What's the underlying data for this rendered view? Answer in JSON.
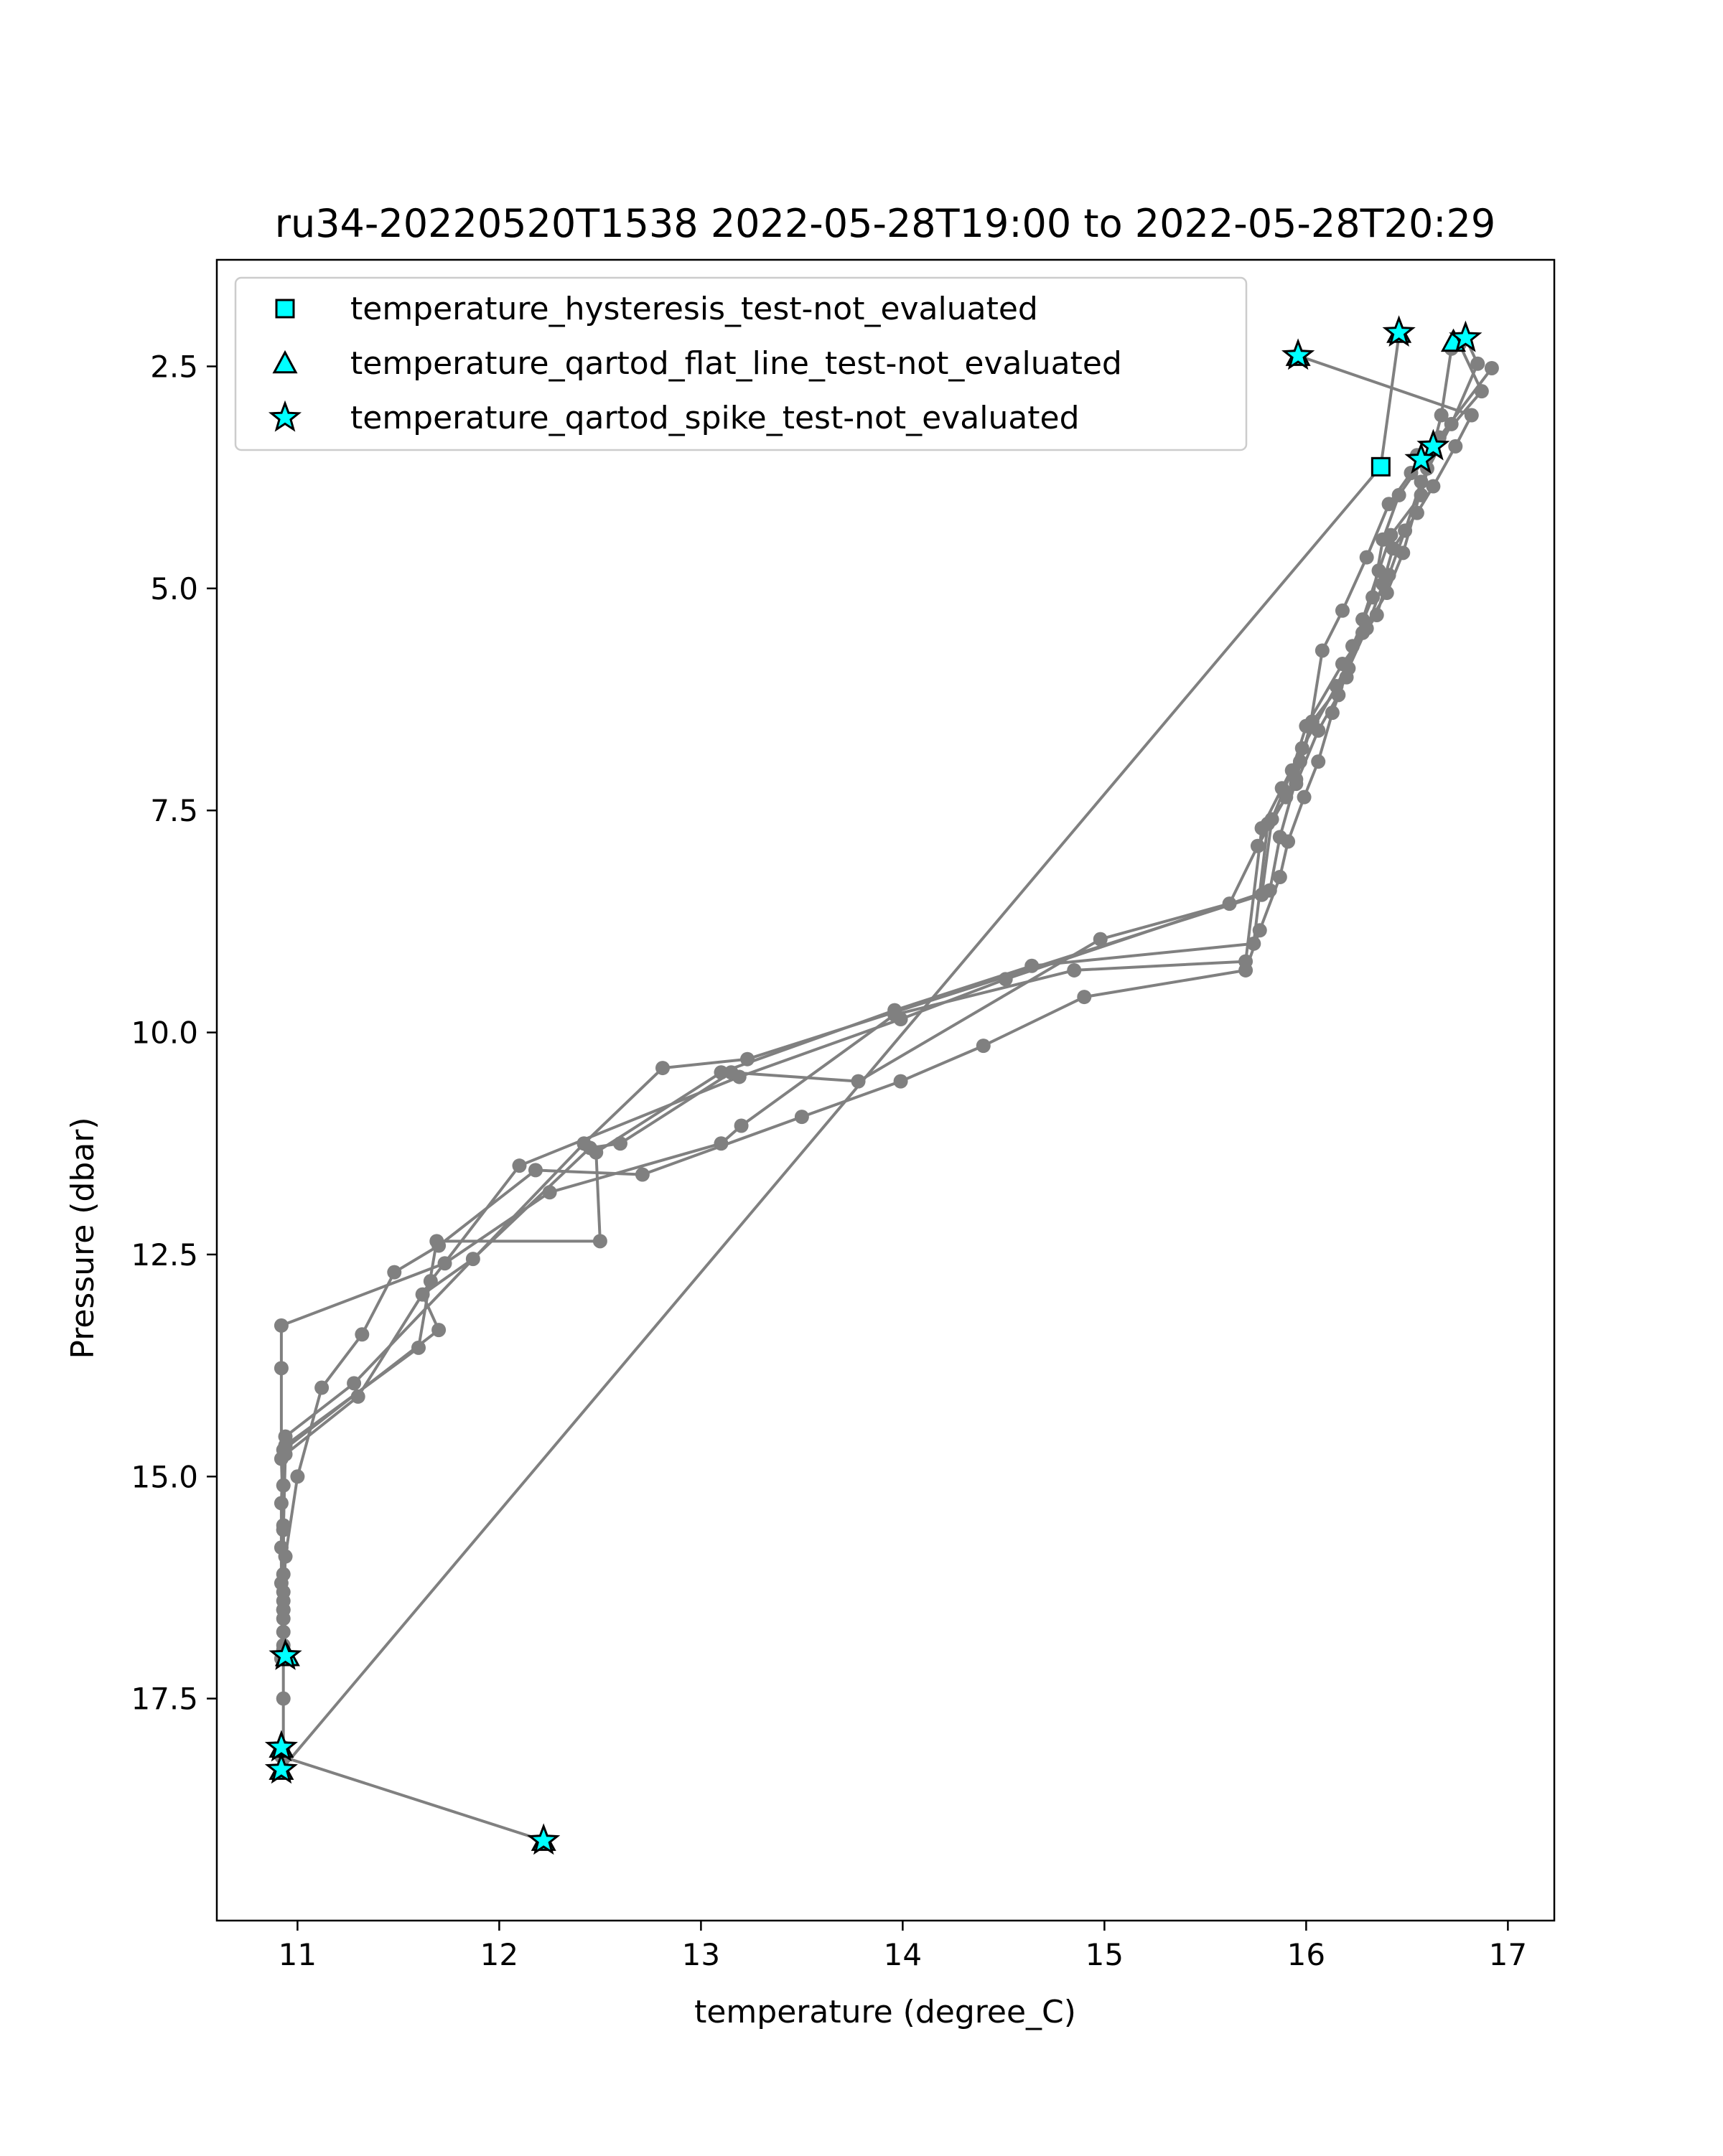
{
  "chart_data": {
    "type": "scatter",
    "title": "ru34-20220520T1538 2022-05-28T19:00 to 2022-05-28T20:29",
    "xlabel": "temperature (degree_C)",
    "ylabel": "Pressure (dbar)",
    "xlim": [
      10.6,
      17.23
    ],
    "ylim": [
      20.0,
      1.3
    ],
    "y_inverted": true,
    "x_ticks": [
      "11",
      "12",
      "13",
      "14",
      "15",
      "16",
      "17"
    ],
    "y_ticks": [
      "2.5",
      "5.0",
      "7.5",
      "10.0",
      "12.5",
      "15.0",
      "17.5"
    ],
    "grid": false,
    "legend_position": "top-left",
    "colors": {
      "profile": "#808080",
      "flag_fill": "#00ffff",
      "flag_edge": "#000000"
    },
    "series": [
      {
        "type": "line",
        "points": [
          [
            15.96,
            2.38
          ],
          [
            16.82,
            3.05
          ],
          [
            16.74,
            3.4
          ],
          [
            16.63,
            3.85
          ],
          [
            16.55,
            4.15
          ],
          [
            16.43,
            4.55
          ],
          [
            16.38,
            4.95
          ],
          [
            16.3,
            5.45
          ],
          [
            16.21,
            5.9
          ],
          [
            16.13,
            6.4
          ],
          [
            16.06,
            6.95
          ],
          [
            15.99,
            7.35
          ],
          [
            15.91,
            7.85
          ],
          [
            15.87,
            8.25
          ],
          [
            15.77,
            8.85
          ],
          [
            15.7,
            9.3
          ],
          [
            14.9,
            9.6
          ],
          [
            14.4,
            10.15
          ],
          [
            13.99,
            10.55
          ],
          [
            13.5,
            10.95
          ],
          [
            12.71,
            11.6
          ],
          [
            12.18,
            11.55
          ],
          [
            11.7,
            12.4
          ],
          [
            11.48,
            12.7
          ],
          [
            11.32,
            13.4
          ],
          [
            11.12,
            14.0
          ],
          [
            11.0,
            15.0
          ],
          [
            10.94,
            15.9
          ],
          [
            10.93,
            16.5
          ],
          [
            10.93,
            17.02
          ]
        ]
      },
      {
        "type": "line",
        "points": [
          [
            10.93,
            18.05
          ],
          [
            10.93,
            17.5
          ],
          [
            10.93,
            16.9
          ],
          [
            10.92,
            16.2
          ],
          [
            10.92,
            15.8
          ],
          [
            10.92,
            15.3
          ],
          [
            10.93,
            14.7
          ],
          [
            11.7,
            13.35
          ],
          [
            11.62,
            12.95
          ],
          [
            11.87,
            12.55
          ],
          [
            12.45,
            11.3
          ],
          [
            12.6,
            11.25
          ],
          [
            13.15,
            10.45
          ],
          [
            13.78,
            10.55
          ],
          [
            14.98,
            8.95
          ],
          [
            15.62,
            8.55
          ],
          [
            15.76,
            7.9
          ],
          [
            15.9,
            7.35
          ],
          [
            15.97,
            6.95
          ],
          [
            16.02,
            6.55
          ],
          [
            16.08,
            5.7
          ],
          [
            16.18,
            5.25
          ],
          [
            16.3,
            4.65
          ],
          [
            16.41,
            4.05
          ],
          [
            16.52,
            3.7
          ],
          [
            16.58,
            3.55
          ],
          [
            16.87,
            2.78
          ],
          [
            16.76,
            2.25
          ]
        ]
      },
      {
        "type": "line",
        "points": [
          [
            16.46,
            2.15
          ],
          [
            16.37,
            3.63
          ],
          [
            10.92,
            18.3
          ],
          [
            10.92,
            18.15
          ],
          [
            12.22,
            19.1
          ]
        ]
      },
      {
        "type": "line",
        "points": [
          [
            16.79,
            2.18
          ],
          [
            16.85,
            2.47
          ],
          [
            16.72,
            3.15
          ],
          [
            16.57,
            3.8
          ],
          [
            16.49,
            4.35
          ],
          [
            16.41,
            4.85
          ],
          [
            16.35,
            5.3
          ],
          [
            16.18,
            5.85
          ],
          [
            16.0,
            6.55
          ],
          [
            15.93,
            7.05
          ],
          [
            15.83,
            7.6
          ],
          [
            15.78,
            8.45
          ],
          [
            13.23,
            10.3
          ],
          [
            12.81,
            10.4
          ],
          [
            12.42,
            11.25
          ],
          [
            11.28,
            13.95
          ],
          [
            10.94,
            14.55
          ],
          [
            10.93,
            15.6
          ],
          [
            10.93,
            16.1
          ],
          [
            10.93,
            16.6
          ],
          [
            10.92,
            17.05
          ]
        ]
      },
      {
        "type": "line",
        "points": [
          [
            16.92,
            2.52
          ],
          [
            16.66,
            3.3
          ],
          [
            16.46,
            3.95
          ],
          [
            16.38,
            4.45
          ],
          [
            16.33,
            5.1
          ],
          [
            16.23,
            5.65
          ],
          [
            16.16,
            6.2
          ],
          [
            16.06,
            6.6
          ],
          [
            15.95,
            7.2
          ],
          [
            15.81,
            7.65
          ],
          [
            15.74,
            9.0
          ],
          [
            14.64,
            9.25
          ],
          [
            13.96,
            9.75
          ],
          [
            13.1,
            10.45
          ],
          [
            12.48,
            11.35
          ],
          [
            12.5,
            12.35
          ],
          [
            11.69,
            12.35
          ],
          [
            11.6,
            13.55
          ],
          [
            10.94,
            14.65
          ],
          [
            10.93,
            15.1
          ],
          [
            10.93,
            16.4
          ],
          [
            10.93,
            16.95
          ]
        ]
      },
      {
        "type": "line",
        "points": [
          [
            16.72,
            2.3
          ],
          [
            16.67,
            3.05
          ],
          [
            16.57,
            3.95
          ],
          [
            16.42,
            4.4
          ],
          [
            16.36,
            4.8
          ],
          [
            16.28,
            5.35
          ],
          [
            16.2,
            6.0
          ],
          [
            16.03,
            6.5
          ],
          [
            15.95,
            7.15
          ],
          [
            15.87,
            7.8
          ],
          [
            15.82,
            8.4
          ],
          [
            14.51,
            9.4
          ],
          [
            13.99,
            9.85
          ],
          [
            13.19,
            10.5
          ],
          [
            12.1,
            11.5
          ],
          [
            11.66,
            12.8
          ],
          [
            11.3,
            14.1
          ],
          [
            10.94,
            14.75
          ],
          [
            10.93,
            15.6
          ],
          [
            10.93,
            16.3
          ],
          [
            10.93,
            16.75
          ],
          [
            10.93,
            17.0
          ]
        ]
      },
      {
        "type": "line",
        "points": [
          [
            16.55,
            3.5
          ],
          [
            16.6,
            3.65
          ],
          [
            16.48,
            4.6
          ],
          [
            16.4,
            5.05
          ],
          [
            16.28,
            5.5
          ],
          [
            16.15,
            6.1
          ],
          [
            15.98,
            6.8
          ],
          [
            15.88,
            7.25
          ],
          [
            15.78,
            7.7
          ],
          [
            15.7,
            9.2
          ],
          [
            14.85,
            9.3
          ],
          [
            13.96,
            9.8
          ],
          [
            13.2,
            11.05
          ],
          [
            13.1,
            11.25
          ],
          [
            12.25,
            11.8
          ],
          [
            11.73,
            12.6
          ],
          [
            10.92,
            13.3
          ],
          [
            10.92,
            13.78
          ],
          [
            10.92,
            14.8
          ],
          [
            10.93,
            15.55
          ],
          [
            10.93,
            16.5
          ],
          [
            10.93,
            16.98
          ]
        ]
      }
    ],
    "flagged": [
      {
        "name": "temperature_hysteresis_test-not_evaluated",
        "marker": "square",
        "points": [
          [
            16.37,
            3.63
          ]
        ]
      },
      {
        "name": "temperature_qartod_flat_line_test-not_evaluated",
        "marker": "triangle",
        "points": [
          [
            15.96,
            2.38
          ],
          [
            16.46,
            2.12
          ],
          [
            16.73,
            2.22
          ],
          [
            10.95,
            17.02
          ],
          [
            10.92,
            18.05
          ],
          [
            10.92,
            18.3
          ],
          [
            12.22,
            19.1
          ]
        ]
      },
      {
        "name": "temperature_qartod_spike_test-not_evaluated",
        "marker": "star",
        "points": [
          [
            15.96,
            2.38
          ],
          [
            16.46,
            2.12
          ],
          [
            16.79,
            2.18
          ],
          [
            16.63,
            3.4
          ],
          [
            16.57,
            3.55
          ],
          [
            10.94,
            17.02
          ],
          [
            10.92,
            18.05
          ],
          [
            10.92,
            18.3
          ],
          [
            12.22,
            19.1
          ]
        ]
      }
    ]
  }
}
